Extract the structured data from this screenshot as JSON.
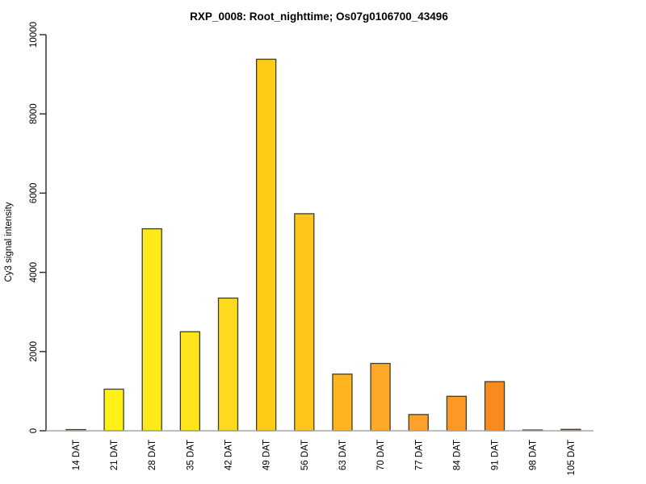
{
  "chart_data": {
    "type": "bar",
    "title": "RXP_0008: Root_nighttime; Os07g0106700_43496",
    "xlabel": "",
    "ylabel": "Cy3 signal intensity",
    "categories": [
      "14 DAT",
      "21 DAT",
      "28 DAT",
      "35 DAT",
      "42 DAT",
      "49 DAT",
      "56 DAT",
      "63 DAT",
      "70 DAT",
      "77 DAT",
      "84 DAT",
      "91 DAT",
      "98 DAT",
      "105 DAT"
    ],
    "values": [
      30,
      1050,
      5100,
      2500,
      3350,
      9380,
      5480,
      1430,
      1700,
      410,
      870,
      1240,
      20,
      35
    ],
    "bar_colors": [
      "#FFF50E",
      "#FFF017",
      "#FFEA19",
      "#FFE31B",
      "#FFD91D",
      "#FFCC15",
      "#FFC51A",
      "#FFB41E",
      "#FDA826",
      "#FFA028",
      "#FC9825",
      "#F98A20",
      "#F67E1E",
      "#F2701A"
    ],
    "bar_border_color": "#3d3d30",
    "ylim": [
      0,
      10000
    ],
    "yticks": [
      0,
      2000,
      4000,
      6000,
      8000,
      10000
    ],
    "x_tick_label_rotation": 90,
    "y_tick_label_rotation": 90,
    "grid": false,
    "legend": null
  }
}
